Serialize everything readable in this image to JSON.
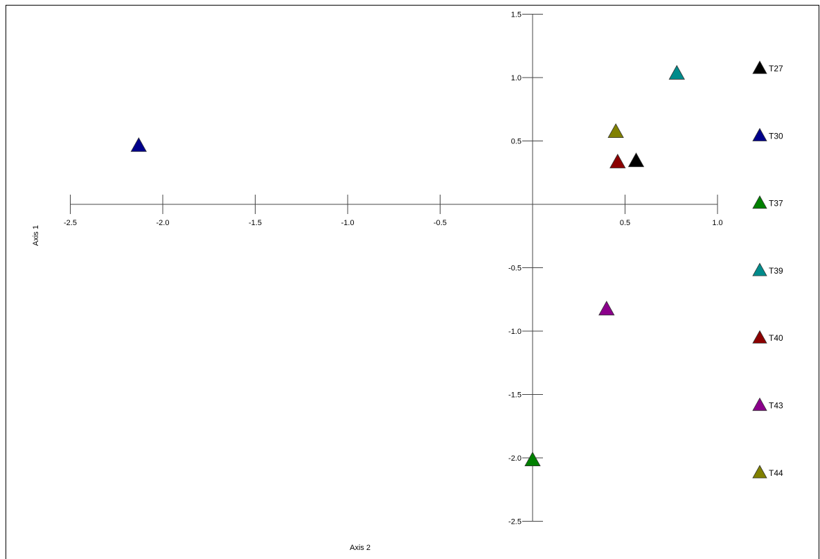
{
  "chart_data": {
    "type": "scatter",
    "title": "",
    "xlabel": "Axis 2",
    "ylabel": "Axis 1",
    "xlim": [
      -2.5,
      1.0
    ],
    "ylim": [
      -2.5,
      1.5
    ],
    "x_ticks": [
      "-2.5",
      "-2.0",
      "-1.5",
      "-1.0",
      "-0.5",
      "0.5",
      "1.0"
    ],
    "x_tick_values": [
      -2.5,
      -2.0,
      -1.5,
      -1.0,
      -0.5,
      0.5,
      1.0
    ],
    "y_ticks": [
      "1.5",
      "1.0",
      "0.5",
      "-0.5",
      "-1.0",
      "-1.5",
      "-2.0",
      "-2.5"
    ],
    "y_tick_values": [
      1.5,
      1.0,
      0.5,
      -0.5,
      -1.0,
      -1.5,
      -2.0,
      -2.5
    ],
    "grid": false,
    "legend_position": "right",
    "marker": "triangle",
    "series": [
      {
        "name": "T27",
        "color": "#000000",
        "points": [
          {
            "x": 0.56,
            "y": 0.34
          }
        ]
      },
      {
        "name": "T30",
        "color": "#00008b",
        "points": [
          {
            "x": -2.13,
            "y": 0.46
          }
        ]
      },
      {
        "name": "T37",
        "color": "#008000",
        "points": [
          {
            "x": 0.0,
            "y": -2.02
          }
        ]
      },
      {
        "name": "T39",
        "color": "#008b8b",
        "points": [
          {
            "x": 0.78,
            "y": 1.03
          }
        ]
      },
      {
        "name": "T40",
        "color": "#8b0000",
        "points": [
          {
            "x": 0.46,
            "y": 0.33
          }
        ]
      },
      {
        "name": "T43",
        "color": "#8b008b",
        "points": [
          {
            "x": 0.4,
            "y": -0.83
          }
        ]
      },
      {
        "name": "T44",
        "color": "#808000",
        "points": [
          {
            "x": 0.45,
            "y": 0.57
          }
        ]
      }
    ]
  }
}
